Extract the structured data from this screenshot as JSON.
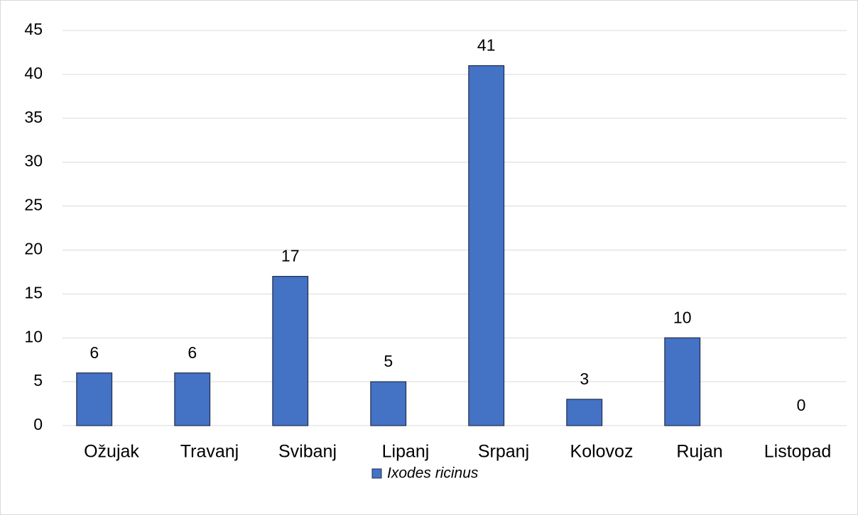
{
  "chart_data": {
    "type": "bar",
    "categories": [
      "Ožujak",
      "Travanj",
      "Svibanj",
      "Lipanj",
      "Srpanj",
      "Kolovoz",
      "Rujan",
      "Listopad"
    ],
    "series": [
      {
        "name": "Ixodes ricinus",
        "color": "#4472c4",
        "values": [
          6,
          6,
          17,
          5,
          41,
          3,
          10,
          0
        ]
      }
    ],
    "ylim": [
      0,
      45
    ],
    "yticks": [
      0,
      5,
      10,
      15,
      20,
      25,
      30,
      35,
      40,
      45
    ],
    "grid": true,
    "legend": "bottom"
  }
}
